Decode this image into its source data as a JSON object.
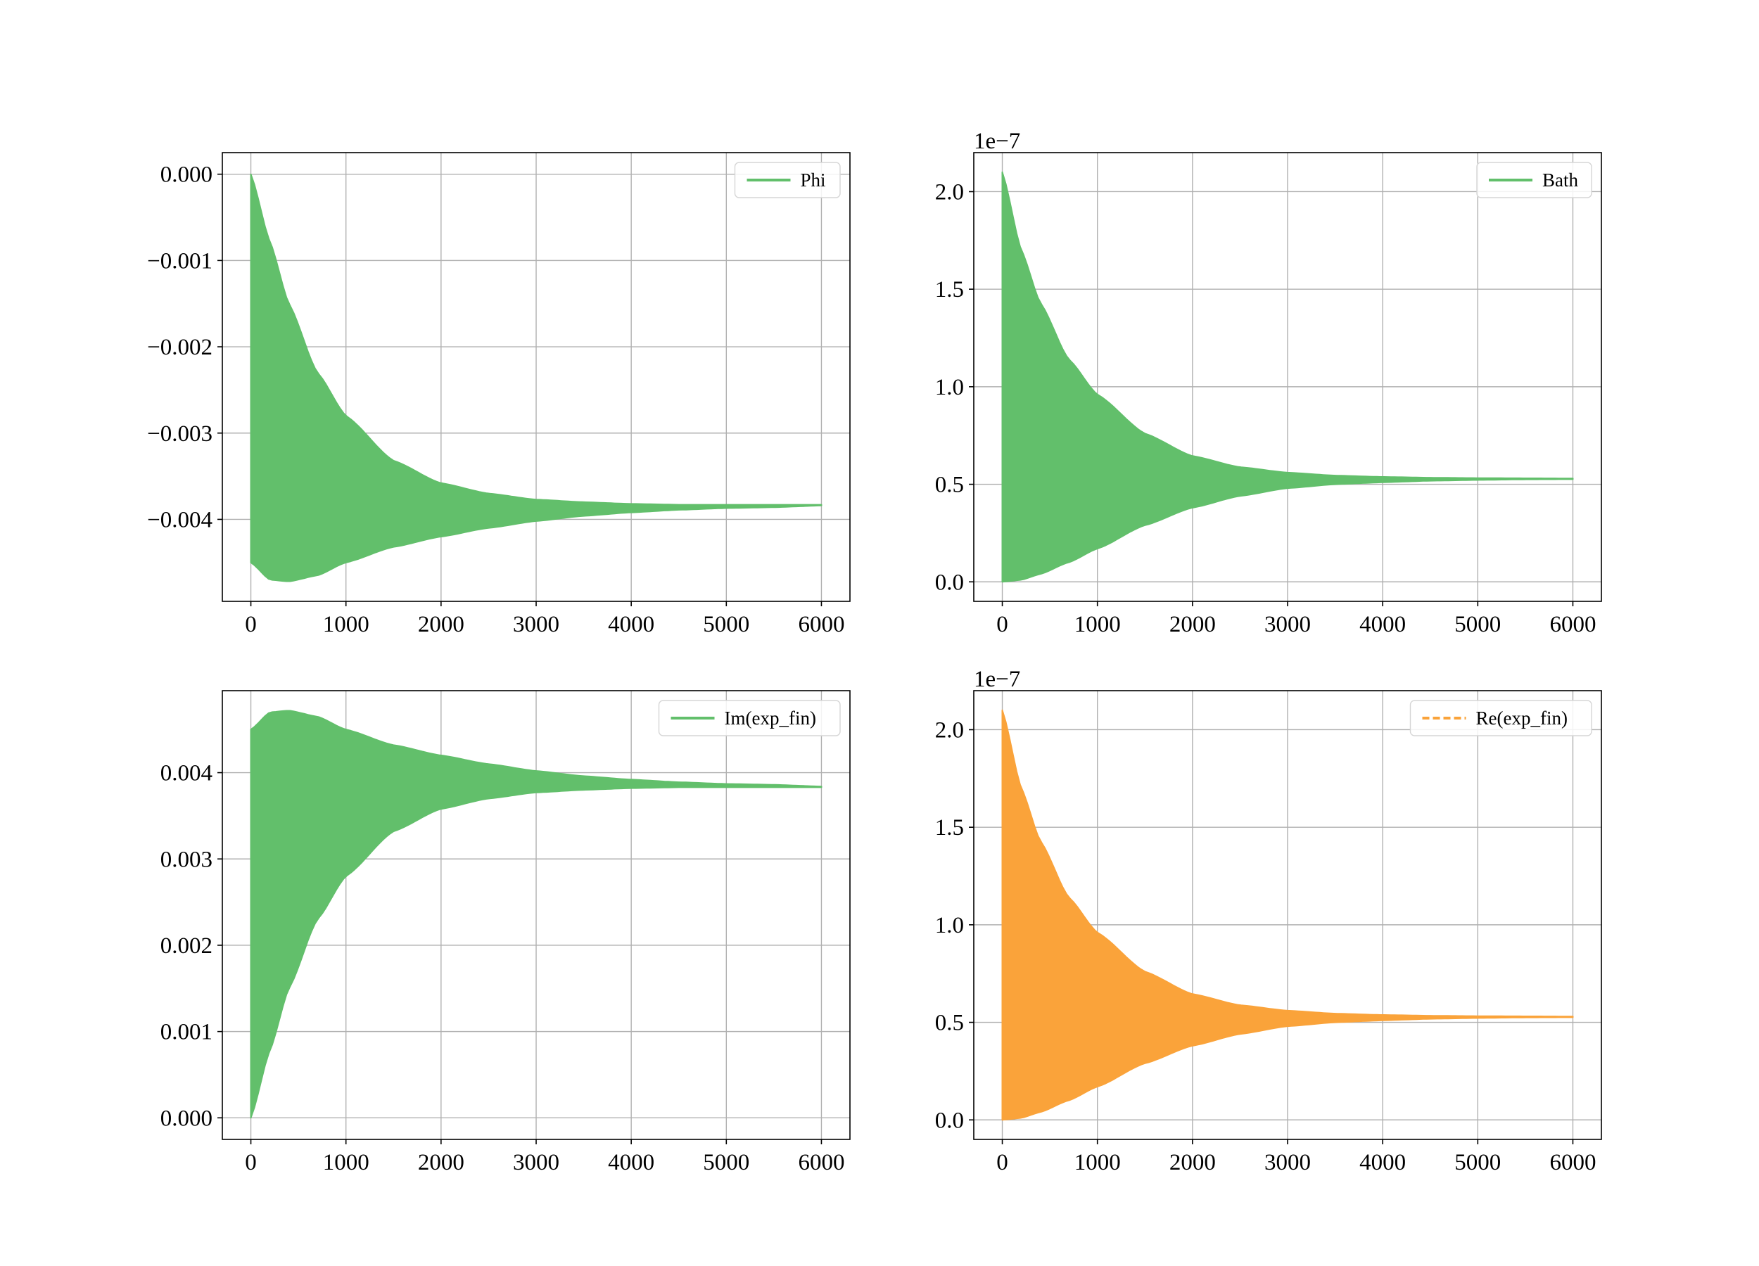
{
  "chart_data": [
    {
      "type": "area",
      "legend": {
        "label": "Phi",
        "placement": "upper right",
        "style": "solid"
      },
      "color": "#62bf6b",
      "grid": true,
      "xlim": [
        -300,
        6300
      ],
      "ylim": [
        -0.00495,
        0.00025
      ],
      "xticks": [
        0,
        1000,
        2000,
        3000,
        4000,
        5000,
        6000
      ],
      "yticks": [
        -0.004,
        -0.003,
        -0.002,
        -0.001,
        0.0
      ],
      "ytick_labels": [
        "−0.004",
        "−0.003",
        "−0.002",
        "−0.001",
        "0.000"
      ],
      "offset_label": "",
      "envelope": {
        "x": [
          0,
          200,
          400,
          700,
          1000,
          1500,
          2000,
          2500,
          3000,
          3500,
          4000,
          4500,
          5000,
          5500,
          6000
        ],
        "upper": [
          0.0,
          -0.00078,
          -0.0015,
          -0.0023,
          -0.0028,
          -0.00332,
          -0.00358,
          -0.0037,
          -0.00377,
          -0.0038,
          -0.00382,
          -0.00383,
          -0.00383,
          -0.00383,
          -0.00383
        ],
        "lower": [
          -0.0045,
          -0.0047,
          -0.00472,
          -0.00465,
          -0.0045,
          -0.00432,
          -0.0042,
          -0.0041,
          -0.00402,
          -0.00396,
          -0.00392,
          -0.00389,
          -0.00387,
          -0.00386,
          -0.00384
        ]
      }
    },
    {
      "type": "area",
      "legend": {
        "label": "Bath",
        "placement": "upper right",
        "style": "solid"
      },
      "color": "#62bf6b",
      "grid": true,
      "xlim": [
        -300,
        6300
      ],
      "ylim": [
        -0.1,
        2.2
      ],
      "xticks": [
        0,
        1000,
        2000,
        3000,
        4000,
        5000,
        6000
      ],
      "yticks": [
        0.0,
        0.5,
        1.0,
        1.5,
        2.0
      ],
      "ytick_labels": [
        "0.0",
        "0.5",
        "1.0",
        "1.5",
        "2.0"
      ],
      "offset_label": "1e−7",
      "envelope": {
        "x": [
          0,
          200,
          400,
          700,
          1000,
          1500,
          2000,
          2500,
          3000,
          3500,
          4000,
          4500,
          5000,
          5500,
          6000
        ],
        "upper": [
          2.1,
          1.7,
          1.43,
          1.14,
          0.96,
          0.76,
          0.645,
          0.588,
          0.56,
          0.545,
          0.538,
          0.534,
          0.532,
          0.531,
          0.53
        ],
        "lower": [
          0.0,
          0.01,
          0.04,
          0.1,
          0.17,
          0.29,
          0.38,
          0.44,
          0.48,
          0.5,
          0.51,
          0.518,
          0.522,
          0.525,
          0.526
        ]
      }
    },
    {
      "type": "area",
      "legend": {
        "label": "Im(exp_fin)",
        "placement": "upper right",
        "style": "solid"
      },
      "color": "#62bf6b",
      "grid": true,
      "xlim": [
        -300,
        6300
      ],
      "ylim": [
        -0.00025,
        0.00495
      ],
      "xticks": [
        0,
        1000,
        2000,
        3000,
        4000,
        5000,
        6000
      ],
      "yticks": [
        0.0,
        0.001,
        0.002,
        0.003,
        0.004
      ],
      "ytick_labels": [
        "0.000",
        "0.001",
        "0.002",
        "0.003",
        "0.004"
      ],
      "offset_label": "",
      "envelope": {
        "x": [
          0,
          200,
          400,
          700,
          1000,
          1500,
          2000,
          2500,
          3000,
          3500,
          4000,
          4500,
          5000,
          5500,
          6000
        ],
        "upper": [
          0.0045,
          0.0047,
          0.00472,
          0.00465,
          0.0045,
          0.00432,
          0.0042,
          0.0041,
          0.00402,
          0.00396,
          0.00392,
          0.00389,
          0.00387,
          0.00386,
          0.00384
        ],
        "lower": [
          0.0,
          0.00078,
          0.0015,
          0.0023,
          0.0028,
          0.00332,
          0.00358,
          0.0037,
          0.00377,
          0.0038,
          0.00382,
          0.00383,
          0.00383,
          0.00383,
          0.00383
        ]
      }
    },
    {
      "type": "area",
      "legend": {
        "label": "Re(exp_fin)",
        "placement": "upper right",
        "style": "dashed"
      },
      "color": "#faa33a",
      "grid": true,
      "xlim": [
        -300,
        6300
      ],
      "ylim": [
        -0.1,
        2.2
      ],
      "xticks": [
        0,
        1000,
        2000,
        3000,
        4000,
        5000,
        6000
      ],
      "yticks": [
        0.0,
        0.5,
        1.0,
        1.5,
        2.0
      ],
      "ytick_labels": [
        "0.0",
        "0.5",
        "1.0",
        "1.5",
        "2.0"
      ],
      "offset_label": "1e−7",
      "envelope": {
        "x": [
          0,
          200,
          400,
          700,
          1000,
          1500,
          2000,
          2500,
          3000,
          3500,
          4000,
          4500,
          5000,
          5500,
          6000
        ],
        "upper": [
          2.1,
          1.7,
          1.43,
          1.14,
          0.96,
          0.76,
          0.645,
          0.588,
          0.56,
          0.545,
          0.538,
          0.534,
          0.532,
          0.531,
          0.53
        ],
        "lower": [
          0.0,
          0.01,
          0.04,
          0.1,
          0.17,
          0.29,
          0.38,
          0.44,
          0.48,
          0.5,
          0.51,
          0.518,
          0.522,
          0.525,
          0.526
        ]
      }
    }
  ]
}
